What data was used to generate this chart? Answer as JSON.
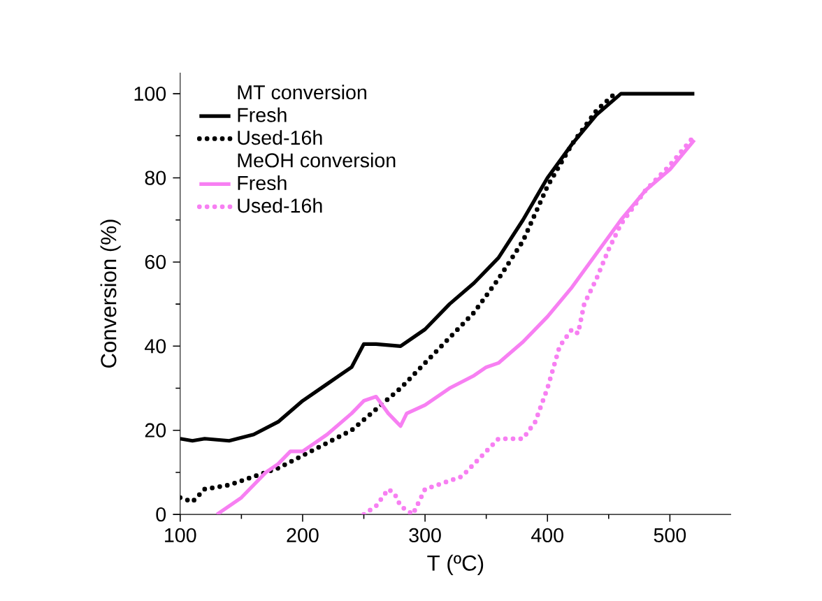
{
  "chart_data": {
    "type": "line",
    "xlabel": "T (ºC)",
    "ylabel": "Conversion (%)",
    "xlim": [
      100,
      550
    ],
    "xticks": [
      100,
      200,
      300,
      400,
      500
    ],
    "ylim": [
      0,
      105
    ],
    "yticks": [
      0,
      20,
      40,
      60,
      80,
      100
    ],
    "legend": "top left",
    "grid": false,
    "annotations": [
      "MT conversion",
      "MeOH conversion"
    ],
    "series": [
      {
        "name": "Fresh",
        "color": "#000000",
        "line_style": "solid",
        "x": [
          100,
          110,
          120,
          140,
          160,
          180,
          200,
          220,
          230,
          240,
          250,
          260,
          280,
          300,
          320,
          340,
          360,
          380,
          400,
          420,
          440,
          460,
          520
        ],
        "values": [
          18,
          17.5,
          18,
          17.5,
          19,
          22,
          27,
          31,
          33,
          35,
          40.5,
          40.5,
          40,
          44,
          50,
          55,
          61,
          70,
          80,
          88,
          95,
          100,
          100
        ]
      },
      {
        "name": "Used-16h",
        "color": "#000000",
        "line_style": "dotted",
        "x": [
          100,
          110,
          120,
          140,
          160,
          180,
          200,
          220,
          240,
          260,
          280,
          300,
          320,
          340,
          360,
          380,
          400,
          420,
          440,
          455
        ],
        "values": [
          4,
          3,
          6,
          7,
          9,
          11,
          14,
          17,
          20,
          25,
          30,
          36,
          42,
          48,
          56,
          65,
          78,
          88,
          96,
          100
        ]
      },
      {
        "name": "Fresh",
        "color": "#f77ff2",
        "line_style": "solid",
        "x": [
          130,
          140,
          150,
          160,
          170,
          180,
          190,
          200,
          210,
          220,
          240,
          250,
          260,
          270,
          280,
          285,
          300,
          320,
          340,
          350,
          360,
          380,
          400,
          420,
          440,
          460,
          480,
          500,
          520
        ],
        "values": [
          0,
          2,
          4,
          7,
          10,
          12,
          15,
          15,
          17,
          19,
          24,
          27,
          28,
          24,
          21,
          24,
          26,
          30,
          33,
          35,
          36,
          41,
          47,
          54,
          62,
          70,
          77,
          82,
          89
        ]
      },
      {
        "name": "Used-16h",
        "color": "#f77ff2",
        "line_style": "dotted",
        "x": [
          250,
          260,
          270,
          275,
          280,
          290,
          300,
          310,
          320,
          330,
          340,
          350,
          360,
          370,
          380,
          390,
          400,
          410,
          420,
          425,
          430,
          440,
          450,
          460,
          470,
          480,
          500,
          520
        ],
        "values": [
          0,
          2,
          6,
          5,
          2,
          0,
          6,
          7,
          8,
          9,
          12,
          15,
          18,
          18,
          18,
          22,
          30,
          40,
          44,
          43,
          50,
          56,
          63,
          69,
          73,
          77,
          83,
          90
        ]
      }
    ]
  }
}
